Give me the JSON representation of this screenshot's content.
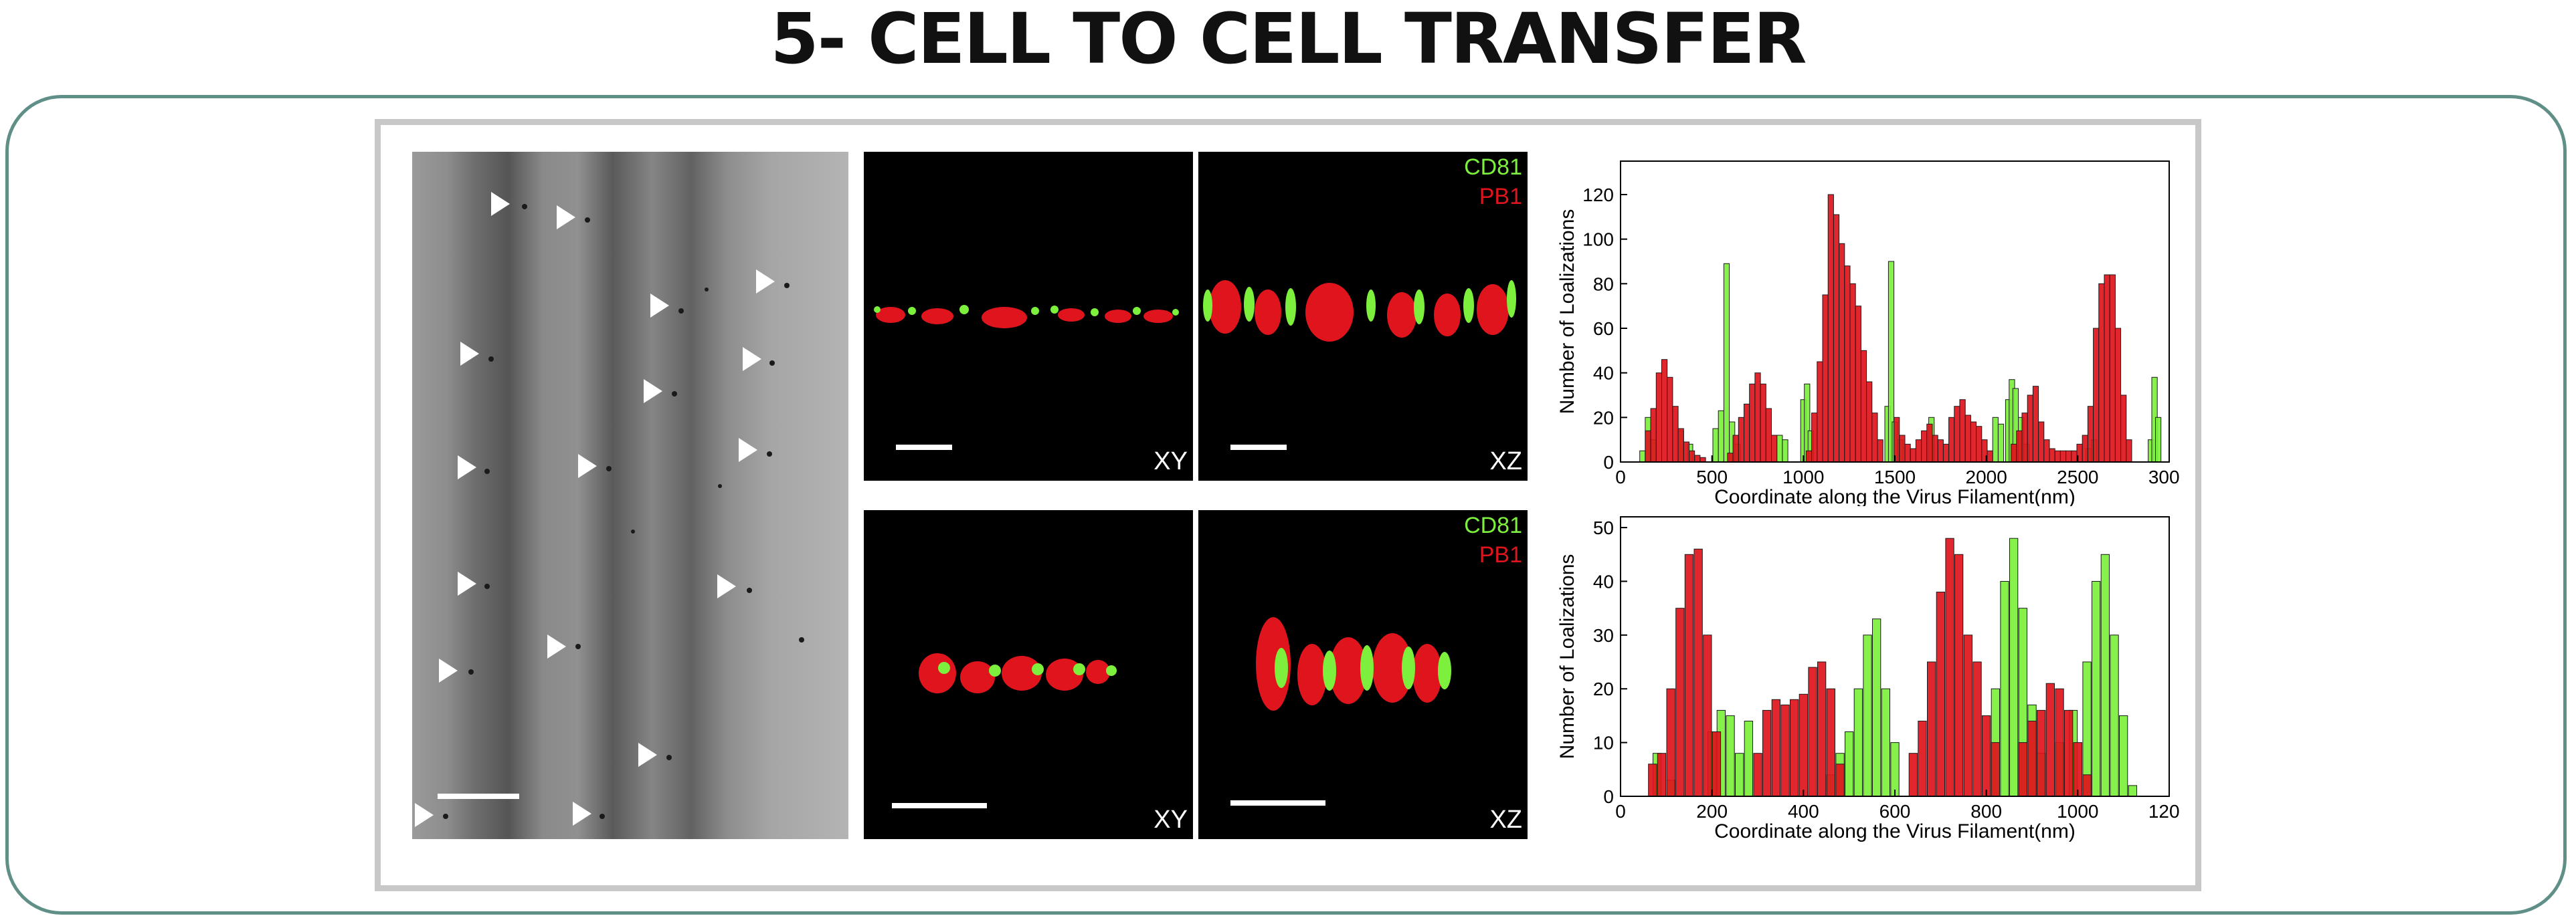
{
  "title": "5- CELL TO CELL TRANSFER",
  "micrographs": {
    "top_xz_labels": [
      "CD81",
      "PB1"
    ],
    "bottom_xz_labels": [
      "CD81",
      "PB1"
    ],
    "xy_label": "XY",
    "xz_label": "XZ"
  },
  "colors": {
    "cd81": "#7cf03c",
    "pb1": "#e0141c",
    "frame": "#5f8f87"
  },
  "chart_data": [
    {
      "type": "bar",
      "ylabel": "Number of Loalizations",
      "xlabel": "Coordinate along the Virus Filament(nm)",
      "xlim": [
        0,
        3000
      ],
      "ylim": [
        0,
        135
      ],
      "xticks": [
        0,
        500,
        1000,
        1500,
        2000,
        2500,
        3000
      ],
      "yticks": [
        0,
        20,
        40,
        60,
        80,
        100,
        120
      ],
      "series": [
        {
          "color": "#7cf03c",
          "x": [
            120,
            150,
            180,
            330,
            380,
            520,
            550,
            580,
            610,
            640,
            870,
            900,
            1000,
            1020,
            1040,
            1460,
            1480,
            1500,
            1530,
            1700,
            2050,
            2080,
            2120,
            2140,
            2160,
            2190,
            2220,
            2560,
            2590,
            2900,
            2920,
            2940
          ],
          "values": [
            5,
            20,
            10,
            14,
            8,
            15,
            23,
            89,
            18,
            8,
            12,
            10,
            28,
            35,
            14,
            25,
            90,
            18,
            10,
            20,
            20,
            17,
            28,
            37,
            33,
            20,
            8,
            6,
            10,
            10,
            38,
            20
          ]
        },
        {
          "color": "#e0141c",
          "x": [
            150,
            180,
            210,
            240,
            270,
            300,
            330,
            360,
            390,
            420,
            450,
            600,
            630,
            660,
            690,
            720,
            750,
            780,
            810,
            840,
            1030,
            1060,
            1090,
            1120,
            1150,
            1180,
            1210,
            1240,
            1270,
            1300,
            1330,
            1360,
            1390,
            1420,
            1510,
            1540,
            1570,
            1600,
            1630,
            1660,
            1690,
            1720,
            1750,
            1780,
            1810,
            1840,
            1870,
            1900,
            1930,
            1960,
            1990,
            2020,
            2150,
            2180,
            2210,
            2240,
            2270,
            2300,
            2330,
            2360,
            2390,
            2420,
            2450,
            2480,
            2510,
            2540,
            2570,
            2600,
            2630,
            2660,
            2690,
            2720,
            2750,
            2780
          ],
          "values": [
            14,
            24,
            40,
            46,
            38,
            25,
            15,
            9,
            5,
            3,
            2,
            4,
            12,
            20,
            26,
            35,
            40,
            35,
            24,
            12,
            5,
            22,
            45,
            75,
            120,
            111,
            98,
            88,
            80,
            70,
            50,
            36,
            22,
            10,
            20,
            12,
            8,
            6,
            10,
            14,
            17,
            12,
            10,
            8,
            20,
            25,
            28,
            21,
            18,
            16,
            10,
            5,
            8,
            14,
            22,
            30,
            34,
            18,
            10,
            6,
            5,
            5,
            5,
            5,
            8,
            12,
            25,
            60,
            80,
            84,
            84,
            60,
            30,
            10
          ]
        }
      ]
    },
    {
      "type": "bar",
      "ylabel": "Number of Loalizations",
      "xlabel": "Coordinate along the Virus Filament(nm)",
      "xlim": [
        0,
        1200
      ],
      "ylim": [
        0,
        52
      ],
      "xticks": [
        0,
        200,
        400,
        600,
        800,
        1000,
        1200
      ],
      "yticks": [
        0,
        10,
        20,
        30,
        40,
        50
      ],
      "series": [
        {
          "color": "#7cf03c",
          "x": [
            80,
            110,
            200,
            220,
            240,
            260,
            280,
            460,
            480,
            500,
            520,
            540,
            560,
            580,
            600,
            820,
            840,
            860,
            880,
            900,
            920,
            960,
            990,
            1020,
            1040,
            1060,
            1080,
            1100,
            1120
          ],
          "values": [
            8,
            3,
            12,
            16,
            15,
            8,
            14,
            4,
            8,
            12,
            20,
            30,
            33,
            20,
            10,
            20,
            40,
            48,
            35,
            17,
            8,
            10,
            16,
            25,
            40,
            45,
            30,
            15,
            2
          ]
        },
        {
          "color": "#e0141c",
          "x": [
            70,
            90,
            110,
            130,
            150,
            170,
            190,
            210,
            300,
            320,
            340,
            360,
            380,
            400,
            420,
            440,
            460,
            480,
            640,
            660,
            680,
            700,
            720,
            740,
            760,
            780,
            800,
            820,
            880,
            900,
            920,
            940,
            960,
            980,
            1000,
            1020
          ],
          "values": [
            6,
            8,
            20,
            35,
            45,
            46,
            30,
            12,
            8,
            16,
            18,
            17,
            18,
            19,
            24,
            25,
            20,
            6,
            8,
            14,
            25,
            38,
            48,
            45,
            30,
            25,
            15,
            10,
            10,
            14,
            16,
            21,
            20,
            16,
            10,
            4
          ]
        }
      ]
    }
  ]
}
